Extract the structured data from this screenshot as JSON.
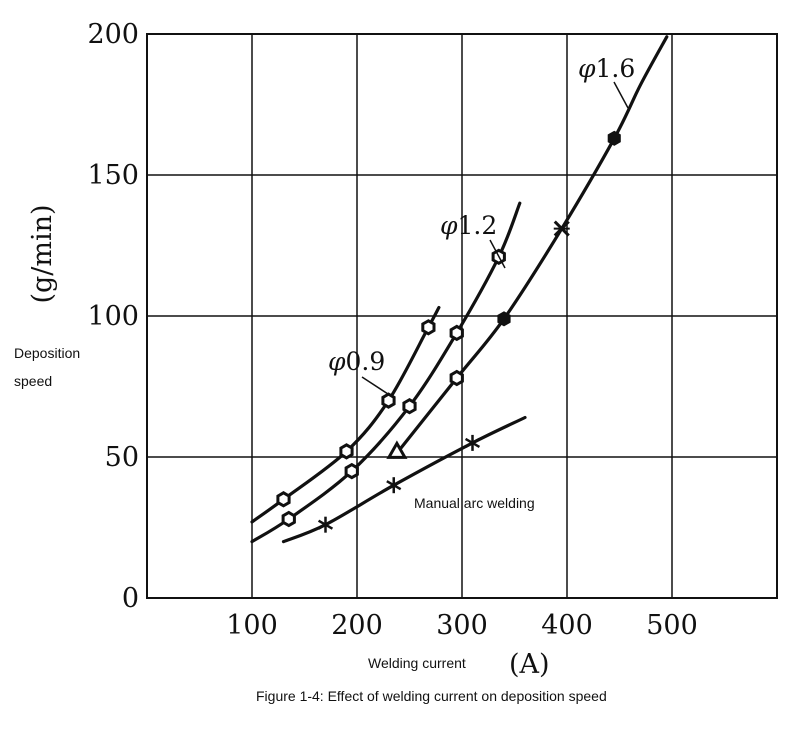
{
  "chart_data": {
    "type": "line",
    "caption": "Figure 1-4: Effect of welding current on deposition speed",
    "xlabel": "Welding current",
    "xunit": "(A)",
    "ylabel": "Deposition speed",
    "yunit": "(g/min)",
    "xlim": [
      0,
      600
    ],
    "ylim": [
      0,
      200
    ],
    "xticks": [
      100,
      200,
      300,
      400,
      500
    ],
    "yticks": [
      0,
      50,
      100,
      150,
      200
    ],
    "grid": true,
    "series": [
      {
        "name": "φ0.9",
        "label_parts": [
          "φ",
          "0.9"
        ],
        "marker": "hexagon",
        "points": [
          [
            100,
            27
          ],
          [
            130,
            35
          ],
          [
            190,
            52
          ],
          [
            230,
            70
          ],
          [
            268,
            96
          ],
          [
            278,
            103
          ]
        ],
        "markers": [
          [
            130,
            35
          ],
          [
            190,
            52
          ],
          [
            230,
            70
          ],
          [
            268,
            96
          ]
        ]
      },
      {
        "name": "φ1.2",
        "label_parts": [
          "φ",
          "1.2"
        ],
        "marker": "hexagon",
        "points": [
          [
            100,
            20
          ],
          [
            135,
            28
          ],
          [
            195,
            45
          ],
          [
            250,
            68
          ],
          [
            295,
            94
          ],
          [
            335,
            121
          ],
          [
            355,
            140
          ]
        ],
        "markers": [
          [
            135,
            28
          ],
          [
            195,
            45
          ],
          [
            250,
            68
          ],
          [
            295,
            94
          ],
          [
            335,
            121
          ]
        ]
      },
      {
        "name": "φ1.6",
        "label_parts": [
          "φ",
          "1.6"
        ],
        "marker": "mixed",
        "points": [
          [
            235,
            50
          ],
          [
            295,
            78
          ],
          [
            340,
            99
          ],
          [
            395,
            131
          ],
          [
            445,
            163
          ],
          [
            470,
            182
          ],
          [
            495,
            199
          ]
        ],
        "markers": [
          [
            238,
            52,
            "triangle"
          ],
          [
            295,
            78,
            "hexagon"
          ],
          [
            340,
            99,
            "filled"
          ],
          [
            395,
            131,
            "cross"
          ],
          [
            445,
            163,
            "filled"
          ]
        ]
      },
      {
        "name": "Manual arc welding",
        "marker": "star",
        "points": [
          [
            130,
            20
          ],
          [
            170,
            26
          ],
          [
            235,
            40
          ],
          [
            310,
            55
          ],
          [
            360,
            64
          ]
        ],
        "markers": [
          [
            170,
            26
          ],
          [
            235,
            40
          ],
          [
            310,
            55
          ]
        ]
      }
    ]
  }
}
